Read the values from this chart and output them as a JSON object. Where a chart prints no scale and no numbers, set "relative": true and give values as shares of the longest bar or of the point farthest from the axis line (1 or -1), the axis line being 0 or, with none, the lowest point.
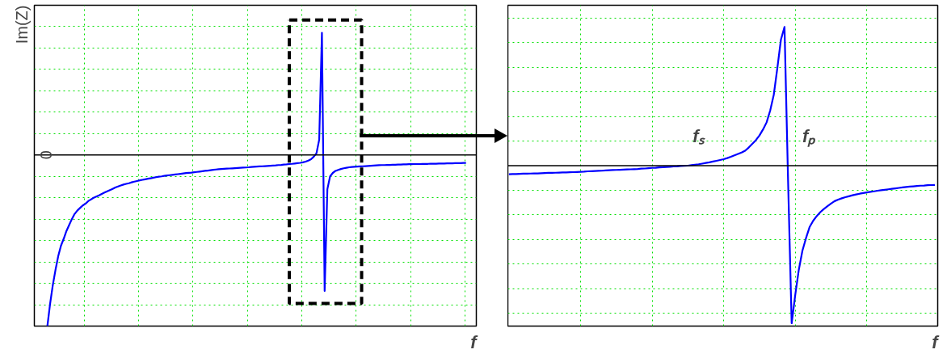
{
  "chart_data": [
    {
      "type": "line",
      "relative": true,
      "ylabel": "Im(Z)",
      "xlabel": "f",
      "grid": true,
      "marker": "none",
      "line_style": "solid",
      "annotations": [
        "0"
      ],
      "categories": [
        null,
        null,
        null,
        null,
        null,
        null,
        null,
        null,
        null,
        null,
        null,
        null,
        null,
        null,
        null,
        null,
        null,
        null,
        null,
        null,
        null,
        null,
        null,
        null,
        null,
        null,
        null,
        null,
        null,
        null,
        null,
        null,
        null,
        null,
        null,
        null,
        null,
        null,
        null,
        null,
        null,
        null,
        null,
        null,
        null,
        null,
        null,
        null,
        null,
        null,
        null,
        null,
        null,
        null,
        null,
        null,
        null,
        null,
        null,
        null,
        null,
        null,
        null,
        null,
        null,
        null,
        null,
        null,
        null,
        null,
        null,
        null,
        null,
        null,
        null,
        null,
        null,
        null,
        null,
        null,
        null,
        null,
        null,
        null,
        null,
        null,
        null,
        null,
        null,
        null,
        null,
        null,
        null,
        null,
        null,
        null,
        null,
        null,
        null,
        null,
        null,
        null,
        null,
        null,
        null,
        null,
        null,
        null,
        null,
        null,
        null,
        null,
        null,
        null,
        null,
        null,
        null,
        null,
        null,
        null,
        null,
        null,
        null,
        null,
        null,
        null,
        null,
        null,
        null,
        null,
        null,
        null,
        null,
        null,
        null,
        null,
        null,
        null,
        null,
        null,
        null,
        null,
        null,
        null,
        null,
        null,
        null,
        null,
        null,
        null,
        null,
        null,
        null,
        null,
        null
      ],
      "series": [
        {
          "color": "#0000ff",
          "values": [
            -1,
            -0.87,
            -0.76,
            -0.67,
            -0.59,
            -0.53,
            -0.49,
            -0.445,
            -0.41,
            -0.375,
            -0.345,
            -0.325,
            -0.31,
            -0.295,
            -0.285,
            -0.27,
            -0.26,
            -0.25,
            -0.243,
            -0.236,
            -0.228,
            -0.22,
            -0.212,
            -0.205,
            -0.198,
            -0.19,
            -0.184,
            -0.178,
            -0.173,
            -0.169,
            -0.165,
            -0.16,
            -0.156,
            -0.152,
            -0.148,
            -0.145,
            -0.142,
            -0.139,
            -0.136,
            -0.133,
            -0.13,
            -0.127,
            -0.125,
            -0.122,
            -0.12,
            -0.118,
            -0.116,
            -0.114,
            -0.112,
            -0.11,
            -0.108,
            -0.106,
            -0.104,
            -0.103,
            -0.101,
            -0.099,
            -0.097,
            -0.095,
            -0.093,
            -0.091,
            -0.089,
            -0.087,
            -0.085,
            -0.083,
            -0.082,
            -0.081,
            -0.08,
            -0.079,
            -0.078,
            -0.077,
            -0.076,
            -0.075,
            -0.074,
            -0.073,
            -0.072,
            -0.07,
            -0.069,
            -0.068,
            -0.067,
            -0.066,
            -0.065,
            -0.064,
            -0.063,
            -0.062,
            -0.061,
            -0.059,
            -0.058,
            -0.056,
            -0.055,
            -0.053,
            -0.052,
            -0.05,
            -0.048,
            -0.046,
            -0.043,
            -0.039,
            -0.033,
            -0.025,
            -0.01,
            0.01,
            0.09,
            0.714,
            -0.795,
            -0.2,
            -0.125,
            -0.105,
            -0.093,
            -0.087,
            -0.082,
            -0.078,
            -0.075,
            -0.072,
            -0.07,
            -0.069,
            -0.068,
            -0.067,
            -0.066,
            -0.065,
            -0.064,
            -0.063,
            -0.062,
            -0.061,
            -0.06,
            -0.059,
            -0.059,
            -0.058,
            -0.058,
            -0.057,
            -0.057,
            -0.056,
            -0.056,
            -0.055,
            -0.055,
            -0.054,
            -0.054,
            -0.053,
            -0.053,
            -0.053,
            -0.052,
            -0.052,
            -0.052,
            -0.051,
            -0.051,
            -0.051,
            -0.05,
            -0.05,
            -0.05,
            -0.049,
            -0.049,
            -0.049,
            -0.048,
            -0.048,
            -0.048,
            -0.047,
            -0.047
          ]
        }
      ]
    },
    {
      "type": "line",
      "relative": true,
      "xlabel": "f",
      "grid": true,
      "marker": "none",
      "line_style": "solid",
      "annotations": [
        "fₛ",
        "fₚ"
      ],
      "categories": [
        null,
        null,
        null,
        null,
        null,
        null,
        null,
        null,
        null,
        null,
        null,
        null,
        null,
        null,
        null,
        null,
        null,
        null,
        null,
        null,
        null,
        null,
        null,
        null,
        null,
        null,
        null,
        null,
        null,
        null,
        null,
        null,
        null,
        null,
        null,
        null,
        null,
        null,
        null,
        null,
        null,
        null,
        null,
        null,
        null,
        null,
        null,
        null,
        null,
        null,
        null,
        null,
        null,
        null,
        null,
        null,
        null,
        null,
        null,
        null,
        null,
        null,
        null,
        null,
        null,
        null,
        null,
        null,
        null,
        null,
        null,
        null,
        null,
        null,
        null,
        null,
        null,
        null,
        null,
        null,
        null,
        null,
        null,
        null,
        null,
        null,
        null,
        null,
        null,
        null,
        null,
        null,
        null,
        null,
        null,
        null,
        null,
        null,
        null,
        null,
        null,
        null,
        null,
        null,
        null,
        null,
        null,
        null,
        null,
        null,
        null,
        null,
        null,
        null,
        null,
        null,
        null,
        null,
        null,
        null
      ],
      "series": [
        {
          "color": "#0000ff",
          "values": [
            -0.054,
            -0.053,
            -0.053,
            -0.052,
            -0.051,
            -0.051,
            -0.05,
            -0.049,
            -0.049,
            -0.048,
            -0.047,
            -0.046,
            -0.046,
            -0.045,
            -0.044,
            -0.043,
            -0.043,
            -0.042,
            -0.041,
            -0.04,
            -0.039,
            -0.038,
            -0.036,
            -0.035,
            -0.034,
            -0.033,
            -0.032,
            -0.03,
            -0.029,
            -0.028,
            -0.027,
            -0.026,
            -0.025,
            -0.024,
            -0.023,
            -0.022,
            -0.021,
            -0.019,
            -0.018,
            -0.016,
            -0.014,
            -0.013,
            -0.011,
            -0.01,
            -0.008,
            -0.007,
            -0.005,
            -0.004,
            -0.002,
            -0.001,
            0,
            0.003,
            0.006,
            0.009,
            0.013,
            0.017,
            0.021,
            0.026,
            0.031,
            0.036,
            0.041,
            0.048,
            0.056,
            0.065,
            0.074,
            0.083,
            0.095,
            0.115,
            0.138,
            0.162,
            0.192,
            0.23,
            0.275,
            0.35,
            0.45,
            0.62,
            0.8,
            0.88,
            -0.1,
            -1,
            -0.82,
            -0.66,
            -0.54,
            -0.46,
            -0.39,
            -0.35,
            -0.32,
            -0.295,
            -0.275,
            -0.257,
            -0.24,
            -0.225,
            -0.215,
            -0.207,
            -0.2,
            -0.194,
            -0.188,
            -0.183,
            -0.178,
            -0.174,
            -0.17,
            -0.166,
            -0.163,
            -0.159,
            -0.156,
            -0.153,
            -0.15,
            -0.147,
            -0.144,
            -0.141,
            -0.138,
            -0.135,
            -0.133,
            -0.131,
            -0.129,
            -0.127,
            -0.126,
            -0.124,
            -0.123,
            -0.122
          ]
        }
      ]
    }
  ]
}
